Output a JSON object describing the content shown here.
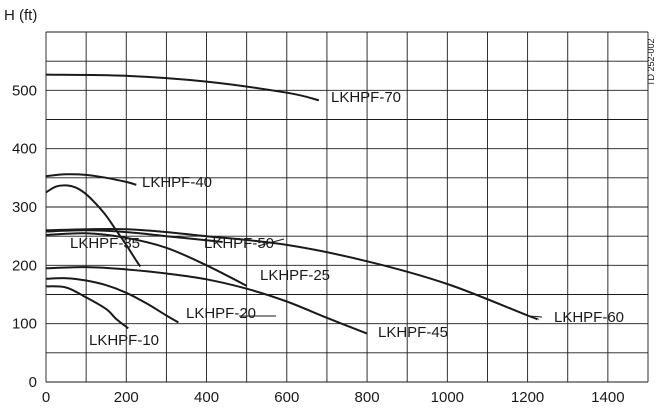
{
  "chart_data": {
    "type": "line",
    "title": "",
    "xlabel": "",
    "ylabel": "H (ft)",
    "doc_code": "TD 252-002",
    "xlim": [
      0,
      1500
    ],
    "ylim": [
      0,
      600
    ],
    "x_ticks": [
      0,
      200,
      400,
      600,
      800,
      1000,
      1200,
      1400
    ],
    "y_ticks": [
      0,
      100,
      200,
      300,
      400,
      500
    ],
    "grid": "on",
    "series": [
      {
        "name": "LKHPF-70",
        "x": [
          0,
          200,
          400,
          600,
          680
        ],
        "y": [
          527,
          525,
          515,
          496,
          483
        ]
      },
      {
        "name": "LKHPF-40",
        "x": [
          0,
          50,
          100,
          150,
          200,
          225
        ],
        "y": [
          353,
          356,
          355,
          350,
          343,
          338
        ]
      },
      {
        "name": "LKHPF-35",
        "x": [
          0,
          25,
          50,
          75,
          100,
          125,
          150,
          175,
          200,
          225,
          235
        ],
        "y": [
          325,
          335,
          337,
          333,
          322,
          305,
          285,
          260,
          235,
          208,
          198
        ]
      },
      {
        "name": "LKHPF-50",
        "x": [
          0,
          100,
          200,
          300,
          400,
          440
        ],
        "y": [
          258,
          260,
          257,
          250,
          243,
          240
        ]
      },
      {
        "name": "LKHPF-25",
        "x": [
          0,
          100,
          200,
          300,
          400,
          500
        ],
        "y": [
          252,
          255,
          247,
          230,
          200,
          165
        ]
      },
      {
        "name": "LKHPF-60",
        "x": [
          0,
          200,
          400,
          600,
          800,
          1000,
          1200,
          1225
        ],
        "y": [
          260,
          262,
          250,
          235,
          207,
          168,
          114,
          108
        ]
      },
      {
        "name": "LKHPF-45",
        "x": [
          0,
          100,
          200,
          300,
          400,
          500,
          600,
          700,
          800
        ],
        "y": [
          195,
          197,
          193,
          186,
          176,
          160,
          138,
          110,
          83
        ]
      },
      {
        "name": "LKHPF-20",
        "x": [
          0,
          50,
          100,
          150,
          200,
          250,
          300,
          330
        ],
        "y": [
          177,
          178,
          174,
          166,
          153,
          135,
          114,
          102
        ]
      },
      {
        "name": "LKHPF-10",
        "x": [
          0,
          50,
          100,
          150,
          175,
          205
        ],
        "y": [
          164,
          162,
          145,
          125,
          108,
          92
        ]
      }
    ]
  }
}
